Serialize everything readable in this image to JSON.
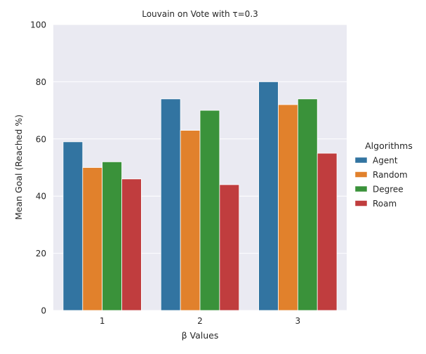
{
  "chart_data": {
    "type": "bar",
    "title": "Louvain on Vote with τ=0.3",
    "xlabel": "β Values",
    "ylabel": "Mean Goal (Reached %)",
    "categories": [
      "1",
      "2",
      "3"
    ],
    "ylim": [
      0,
      100
    ],
    "yticks": [
      0,
      20,
      40,
      60,
      80,
      100
    ],
    "grid": true,
    "legend_title": "Algorithms",
    "legend_position": "right",
    "series": [
      {
        "name": "Agent",
        "color": "#3274a1",
        "values": [
          59,
          74,
          80
        ]
      },
      {
        "name": "Random",
        "color": "#e1812c",
        "values": [
          50,
          63,
          72
        ]
      },
      {
        "name": "Degree",
        "color": "#3a923a",
        "values": [
          52,
          70,
          74
        ]
      },
      {
        "name": "Roam",
        "color": "#c03d3e",
        "values": [
          46,
          44,
          55
        ]
      }
    ],
    "plot_background": "#eaeaf2",
    "grid_color": "#ffffff"
  }
}
